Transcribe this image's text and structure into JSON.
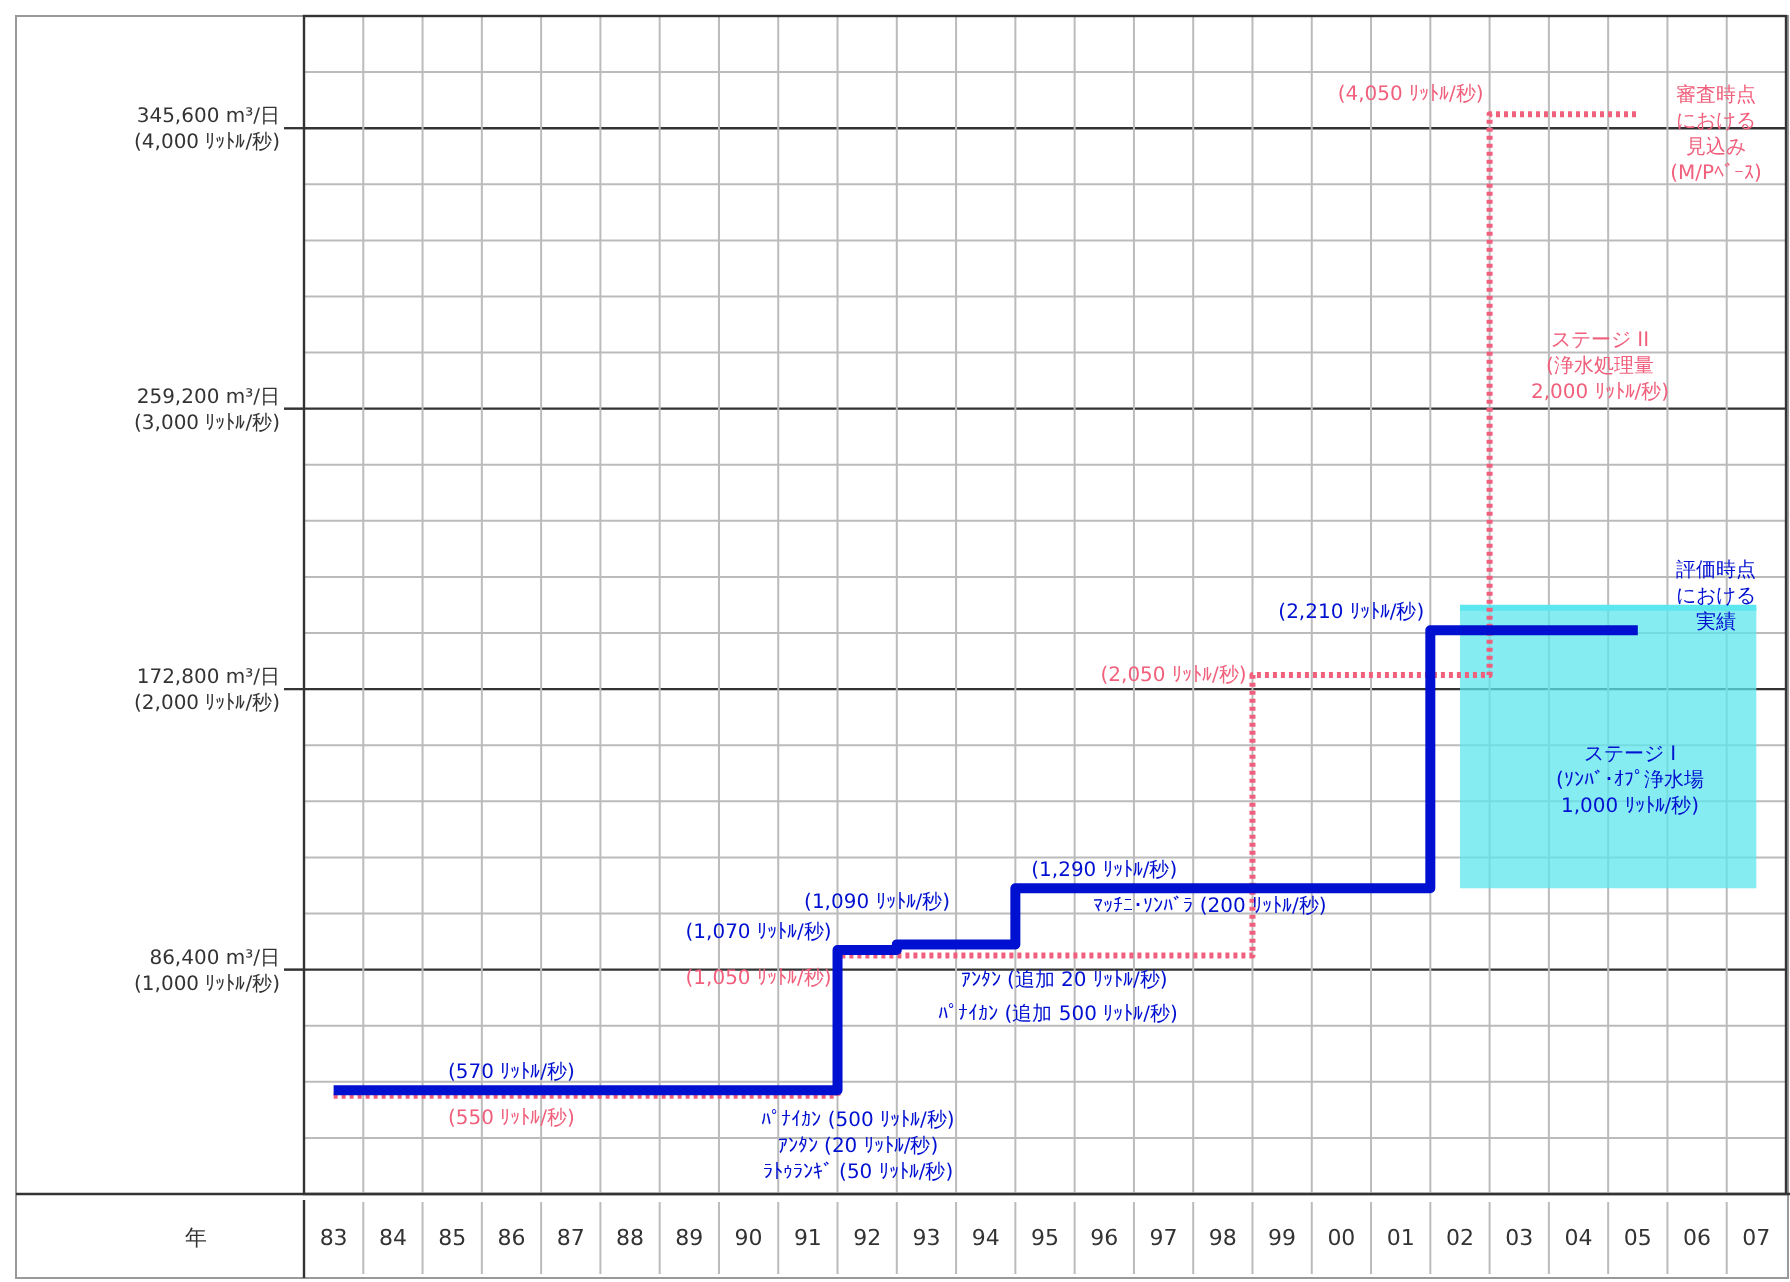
{
  "chart_data": {
    "type": "step",
    "xlabel": "年",
    "categories": [
      "83",
      "84",
      "85",
      "86",
      "87",
      "88",
      "89",
      "90",
      "91",
      "92",
      "93",
      "94",
      "95",
      "96",
      "97",
      "98",
      "99",
      "00",
      "01",
      "02",
      "03",
      "04",
      "05",
      "06",
      "07"
    ],
    "ylim": [
      200,
      4400
    ],
    "yticks": [
      {
        "value": 400,
        "label": null
      },
      {
        "value": 600,
        "label": null
      },
      {
        "value": 800,
        "label": null
      },
      {
        "value": 1000,
        "label": "(1,000 ﾘｯﾄﾙ/秒)"
      },
      {
        "value": 1200,
        "label": null
      },
      {
        "value": 1400,
        "label": null
      },
      {
        "value": 1600,
        "label": null
      },
      {
        "value": 1800,
        "label": null
      },
      {
        "value": 2000,
        "label": "(2,000 ﾘｯﾄﾙ/秒)"
      },
      {
        "value": 2200,
        "label": null
      },
      {
        "value": 2400,
        "label": null
      },
      {
        "value": 2600,
        "label": null
      },
      {
        "value": 2800,
        "label": null
      },
      {
        "value": 3000,
        "label": "(3,000 ﾘｯﾄﾙ/秒)"
      },
      {
        "value": 3200,
        "label": null
      },
      {
        "value": 3400,
        "label": null
      },
      {
        "value": 3600,
        "label": null
      },
      {
        "value": 3800,
        "label": null
      },
      {
        "value": 4000,
        "label": "(4,000 ﾘｯﾄﾙ/秒)"
      },
      {
        "value": 4200,
        "label": null
      }
    ],
    "y2lim": [
      17280,
      380160
    ],
    "y2ticks": [
      {
        "value": 86400,
        "label": "86,400 m³/日"
      },
      {
        "value": 172800,
        "label": "172,800 m³/日"
      },
      {
        "value": 259200,
        "label": "259,200 m³/日"
      },
      {
        "value": 345600,
        "label": "345,600 m³/日"
      }
    ],
    "grid": true,
    "series": [
      {
        "type": "line",
        "color": "#5ce6ee",
        "values": [
          null,
          null,
          null,
          null,
          null,
          null,
          null,
          null,
          null,
          null,
          null,
          null,
          null,
          null,
          null,
          null,
          null,
          null,
          null,
          2290,
          2290,
          2290,
          2290,
          2290,
          2290
        ],
        "lower": [
          null,
          null,
          null,
          null,
          null,
          null,
          null,
          null,
          null,
          null,
          null,
          null,
          null,
          null,
          null,
          null,
          null,
          null,
          null,
          1290,
          1290,
          1290,
          1290,
          1290,
          1290
        ],
        "upper": [
          null,
          null,
          null,
          null,
          null,
          null,
          null,
          null,
          null,
          null,
          null,
          null,
          null,
          null,
          null,
          null,
          null,
          null,
          null,
          2290,
          2290,
          2290,
          2290,
          2290,
          2290
        ]
      },
      {
        "color": "#f0607c",
        "line_style": "dotted",
        "values": [
          550,
          550,
          550,
          550,
          550,
          550,
          550,
          550,
          550,
          1050,
          1050,
          1050,
          1050,
          1050,
          1050,
          1050,
          2050,
          2050,
          2050,
          2050,
          4050,
          4050,
          4050,
          null,
          null
        ],
        "value_labels": [
          null,
          null,
          null,
          "(550 ﾘｯﾄﾙ/秒)",
          null,
          null,
          null,
          null,
          null,
          "(1,050 ﾘｯﾄﾙ/秒)",
          null,
          null,
          null,
          null,
          null,
          null,
          "(2,050 ﾘｯﾄﾙ/秒)",
          null,
          null,
          null,
          "(4,050 ﾘｯﾄﾙ/秒)",
          null,
          null,
          null,
          null
        ]
      },
      {
        "color": "#0010d0",
        "line_style": "solid",
        "values": [
          570,
          570,
          570,
          570,
          570,
          570,
          570,
          570,
          570,
          1070,
          1090,
          1090,
          1290,
          1290,
          1290,
          1290,
          1290,
          1290,
          1290,
          2210,
          2210,
          2210,
          2210,
          null,
          null
        ],
        "value_labels": [
          null,
          null,
          null,
          "(570 ﾘｯﾄﾙ/秒)",
          null,
          null,
          null,
          null,
          null,
          "(1,070 ﾘｯﾄﾙ/秒)",
          null,
          "(1,090 ﾘｯﾄﾙ/秒)",
          null,
          "(1,290 ﾘｯﾄﾙ/秒)",
          null,
          null,
          null,
          null,
          null,
          "(2,210 ﾘｯﾄﾙ/秒)",
          null,
          null,
          null,
          null,
          null
        ]
      }
    ],
    "annotations": [
      "ﾏｯﾁﾆ･ｿﾝﾊﾞﾗ (200 ﾘｯﾄﾙ/秒)",
      "ｱﾝﾀﾝ (追加 20 ﾘｯﾄﾙ/秒)",
      "ﾊﾟﾅｲｶﾝ (追加 500 ﾘｯﾄﾙ/秒)",
      "ﾊﾟﾅｲｶﾝ (500 ﾘｯﾄﾙ/秒)\nｱﾝﾀﾝ (20 ﾘｯﾄﾙ/秒)\nﾗﾄｩﾗﾝｷﾞ (50 ﾘｯﾄﾙ/秒)",
      "審査時点における見込み\n(M/Pﾍﾞｰｽ)",
      "ステージ II\n(浄水処理量\n2,000 ﾘｯﾄﾙ/秒)",
      "評価時点における実績",
      "ステージ I\n(ｿﾝﾊﾞ･ｵﾌﾟ浄水場\n1,000 ﾘｯﾄﾙ/秒)"
    ]
  }
}
